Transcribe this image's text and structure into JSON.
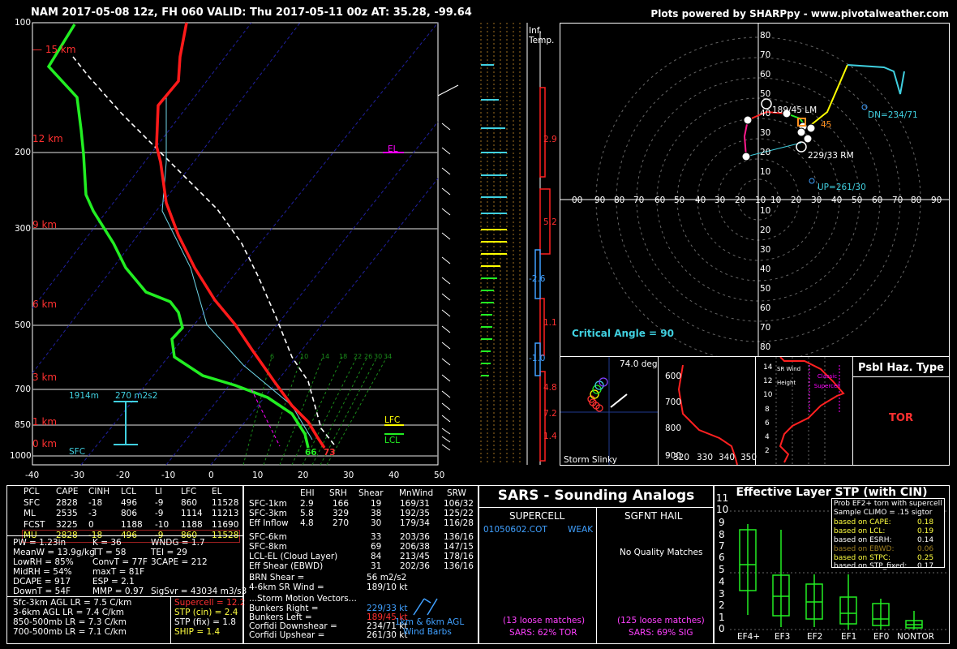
{
  "header": {
    "left": "NAM 2017-05-08 12z, FH 060   VALID: Thu 2017-05-11 00z   AT: 35.28, -99.64",
    "right": "Plots powered by SHARPpy - www.pivotalweather.com"
  },
  "skewt": {
    "pressure_labels": [
      "100",
      "200",
      "300",
      "500",
      "700",
      "850",
      "1000"
    ],
    "temp_labels": [
      "-40",
      "-30",
      "-20",
      "-10",
      "0",
      "10",
      "20",
      "30",
      "40",
      "50"
    ],
    "height_labels": [
      "15 km",
      "12 km",
      "9 km",
      "6 km",
      "3 km",
      "1 km",
      "0 km"
    ],
    "el_label": "EL",
    "lfc_label": "LFC",
    "lcl_label": "LCL",
    "sfc_label": "SFC",
    "srh_height": "1914m",
    "srh_value": "270 m2s2",
    "sfc_td": "66",
    "sfc_t": "73",
    "mixing_ratios": [
      "6",
      "10",
      "14",
      "18",
      "22",
      "26",
      "30",
      "34"
    ]
  },
  "inflow": {
    "title_line1": "Inf.",
    "title_line2": "Temp.",
    "vals": [
      "2.9",
      "5.2",
      "-2.6",
      "1.1",
      "-1.0",
      "4.8",
      "7.2",
      "1.4"
    ]
  },
  "hodograph": {
    "xlabels": [
      "00",
      "90",
      "80",
      "70",
      "60",
      "50",
      "40",
      "30",
      "20",
      "10",
      "10",
      "20",
      "30",
      "40",
      "50",
      "60",
      "70",
      "80",
      "90"
    ],
    "ylabels_top": [
      "80",
      "70",
      "60",
      "50",
      "40",
      "30",
      "20",
      "10"
    ],
    "ylabels_bot": [
      "10",
      "20",
      "30",
      "40",
      "50",
      "60",
      "70",
      "80"
    ],
    "lm": "189/45 LM",
    "rm": "229/33 RM",
    "dn": "DN=234/71",
    "up": "UP=261/30",
    "mean": "45",
    "critical_angle": "Critical Angle = 90",
    "points": [
      "0",
      "1",
      "2",
      "3",
      "4",
      "5",
      "6"
    ]
  },
  "slinky": {
    "angle": "74.0 deg",
    "title": "Storm Slinky"
  },
  "theta": {
    "ylabels": [
      "600",
      "700",
      "800",
      "900"
    ],
    "xlabels": [
      "320",
      "330",
      "340",
      "350"
    ]
  },
  "wind_profile": {
    "labels": [
      "14",
      "12",
      "10",
      "8",
      "6",
      "4",
      "2"
    ],
    "sr_wind": "SR Wind",
    "height": "Height",
    "classic": "Classic Supercell"
  },
  "haz": {
    "title": "Psbl Haz. Type",
    "value": "TOR"
  },
  "parcels": {
    "headers": [
      "PCL",
      "CAPE",
      "CINH",
      "LCL",
      "LI",
      "LFC",
      "EL"
    ],
    "rows": [
      [
        "SFC",
        "2828",
        "-18",
        "496",
        "-9",
        "860",
        "11528"
      ],
      [
        "ML",
        "2535",
        "-3",
        "806",
        "-9",
        "1114",
        "11213"
      ],
      [
        "FCST",
        "3225",
        "0",
        "1188",
        "-10",
        "1188",
        "11690"
      ],
      [
        "MU",
        "2828",
        "-18",
        "496",
        "-9",
        "860",
        "11528"
      ]
    ]
  },
  "thermo": [
    [
      "PW = 1.23in",
      "K = 36",
      "WNDG = 1.7"
    ],
    [
      "MeanW = 13.9g/kg",
      "TT = 58",
      "TEI = 29"
    ],
    [
      "LowRH = 85%",
      "ConvT = 77F",
      "3CAPE = 212"
    ],
    [
      "MidRH = 54%",
      "maxT = 81F",
      ""
    ],
    [
      "DCAPE = 917",
      "ESP = 2.1",
      ""
    ],
    [
      "DownT = 54F",
      "MMP = 0.97",
      "SigSvr = 43034 m3/s3"
    ]
  ],
  "lapse": [
    "Sfc-3km AGL LR = 7.5 C/km",
    "3-6km AGL LR = 7.4 C/km",
    "850-500mb LR = 7.3 C/km",
    "700-500mb LR = 7.1 C/km"
  ],
  "composites": [
    {
      "text": "Supercell = 12.2",
      "color": "#ff3030"
    },
    {
      "text": "STP (cin) = 2.4",
      "color": "#ffff40"
    },
    {
      "text": "STP (fix) = 1.8",
      "color": "#ffffff"
    },
    {
      "text": "SHIP = 1.4",
      "color": "#ffff40"
    }
  ],
  "kinematic": {
    "headers": [
      "",
      "EHI",
      "SRH",
      "Shear",
      "MnWind",
      "SRW"
    ],
    "rows": [
      [
        "SFC-1km",
        "2.9",
        "166",
        "19",
        "169/31",
        "106/32"
      ],
      [
        "SFC-3km",
        "5.8",
        "329",
        "38",
        "192/35",
        "125/22"
      ],
      [
        "Eff Inflow",
        "4.8",
        "270",
        "30",
        "179/34",
        "116/28"
      ],
      [
        "",
        "",
        "",
        "",
        "",
        ""
      ],
      [
        "SFC-6km",
        "",
        "",
        "33",
        "203/36",
        "136/16"
      ],
      [
        "SFC-8km",
        "",
        "",
        "69",
        "206/38",
        "147/15"
      ],
      [
        "LCL-EL (Cloud Layer)",
        "",
        "",
        "84",
        "213/45",
        "178/16"
      ],
      [
        "Eff Shear (EBWD)",
        "",
        "",
        "31",
        "202/36",
        "136/16"
      ]
    ],
    "brn": "BRN Shear =",
    "brn_val": "56 m2/s2",
    "sr46": "4-6km SR Wind =",
    "sr46_val": "189/10 kt",
    "motion_title": "...Storm Motion Vectors...",
    "motions": [
      {
        "label": "Bunkers Right =",
        "val": "229/33 kt",
        "color": "#40a0ff"
      },
      {
        "label": "Bunkers Left =",
        "val": "189/45 kt",
        "color": "#ff3030"
      },
      {
        "label": "Corfidi Downshear =",
        "val": "234/71 kt",
        "color": "#ffffff"
      },
      {
        "label": "Corfidi Upshear =",
        "val": "261/30 kt",
        "color": "#ffffff"
      }
    ],
    "barb_note1": "1km & 6km AGL",
    "barb_note2": "Wind Barbs"
  },
  "sars": {
    "title": "SARS - Sounding Analogs",
    "supercell": "SUPERCELL",
    "hail": "SGFNT HAIL",
    "match_date": "01050602.COT",
    "match_type": "WEAK",
    "no_match": "No Quality Matches",
    "sup_loose": "(13 loose matches)",
    "sup_pct": "SARS: 62% TOR",
    "hail_loose": "(125 loose matches)",
    "hail_pct": "SARS: 69% SIG"
  },
  "stp": {
    "title": "Effective Layer STP (with CIN)",
    "yticks": [
      "0",
      "1",
      "2",
      "3",
      "4",
      "5",
      "6",
      "7",
      "8",
      "9",
      "10",
      "11"
    ],
    "cats": [
      "EF4+",
      "EF3",
      "EF2",
      "EF1",
      "EF0",
      "NONTOR"
    ],
    "legend_title1": "Prob EF2+ torn with supercell",
    "legend_title2": "Sample CLIMO = .15 sigtor",
    "legend_rows": [
      {
        "label": "based on CAPE:",
        "val": "0.18",
        "color": "#ffff40"
      },
      {
        "label": "based on LCL:",
        "val": "0.19",
        "color": "#ffff40"
      },
      {
        "label": "based on ESRH:",
        "val": "0.14",
        "color": "#ffffff"
      },
      {
        "label": "based on EBWD:",
        "val": "0.06",
        "color": "#a08020"
      },
      {
        "label": "based on STPC:",
        "val": "0.25",
        "color": "#ffff40"
      },
      {
        "label": "based on STP_fixed:",
        "val": "0.17",
        "color": "#ffffff"
      }
    ]
  }
}
